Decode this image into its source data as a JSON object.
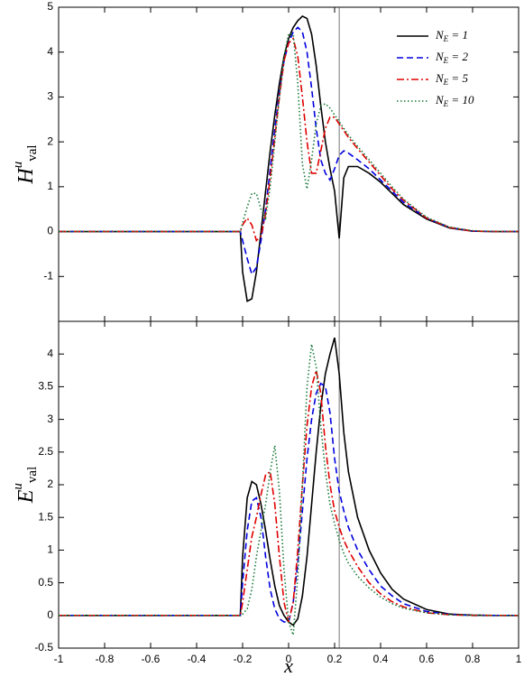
{
  "chart_data": [
    {
      "type": "line",
      "ylabel": "Huval",
      "legend": "upper right",
      "vline": 0.22,
      "x": [
        -1,
        -0.5,
        -0.21,
        -0.2,
        -0.18,
        -0.16,
        -0.14,
        -0.12,
        -0.1,
        -0.08,
        -0.06,
        -0.04,
        -0.02,
        0,
        0.02,
        0.04,
        0.06,
        0.08,
        0.1,
        0.12,
        0.14,
        0.16,
        0.18,
        0.2,
        0.22,
        0.24,
        0.26,
        0.3,
        0.35,
        0.4,
        0.45,
        0.5,
        0.6,
        0.7,
        0.8,
        0.9,
        1
      ],
      "xlim": [
        -1,
        1
      ],
      "xticks": [
        -1,
        -0.8,
        -0.6,
        -0.4,
        -0.2,
        0,
        0.2,
        0.4,
        0.6,
        0.8,
        1
      ],
      "ylim": [
        -2,
        5
      ],
      "yticks": [
        -1,
        0,
        1,
        2,
        3,
        4,
        5
      ],
      "series": [
        {
          "name": "NE = 1",
          "color": "#000000",
          "dash": "none",
          "values": [
            0,
            0,
            0,
            -0.9,
            -1.55,
            -1.5,
            -0.9,
            0,
            0.9,
            1.8,
            2.6,
            3.3,
            3.9,
            4.3,
            4.55,
            4.7,
            4.8,
            4.75,
            4.4,
            3.7,
            2.8,
            2.0,
            1.4,
            0.9,
            -0.15,
            1.2,
            1.45,
            1.45,
            1.3,
            1.1,
            0.85,
            0.6,
            0.28,
            0.08,
            0.01,
            0,
            0
          ]
        },
        {
          "name": "NE = 2",
          "color": "#0000e0",
          "dash": "7 4",
          "values": [
            0,
            0,
            0,
            -0.2,
            -0.6,
            -0.95,
            -0.8,
            -0.2,
            0.5,
            1.4,
            2.3,
            3.1,
            3.8,
            4.2,
            4.45,
            4.55,
            4.45,
            4.0,
            3.2,
            2.3,
            1.6,
            1.3,
            1.15,
            1.4,
            1.7,
            1.8,
            1.75,
            1.6,
            1.4,
            1.15,
            0.9,
            0.65,
            0.3,
            0.09,
            0.01,
            0,
            0
          ]
        },
        {
          "name": "NE = 5",
          "color": "#e00000",
          "dash": "8 3 2 3",
          "values": [
            0,
            0,
            0,
            0.15,
            0.3,
            0.15,
            -0.2,
            -0.1,
            0.4,
            1.2,
            2.1,
            3.0,
            3.8,
            4.2,
            4.3,
            3.9,
            3.0,
            2.0,
            1.3,
            1.3,
            1.8,
            2.3,
            2.55,
            2.55,
            2.4,
            2.25,
            2.1,
            1.85,
            1.55,
            1.25,
            0.95,
            0.7,
            0.3,
            0.09,
            0.01,
            0,
            0
          ]
        },
        {
          "name": "NE = 10",
          "color": "#1a7a3a",
          "dash": "1.5 2.5",
          "values": [
            0,
            0,
            0,
            0.2,
            0.55,
            0.85,
            0.85,
            0.5,
            0.3,
            1.0,
            2.0,
            3.0,
            3.9,
            4.4,
            4.4,
            3.3,
            1.5,
            0.95,
            1.6,
            2.4,
            2.8,
            2.85,
            2.75,
            2.6,
            2.45,
            2.3,
            2.15,
            1.9,
            1.6,
            1.3,
            1.0,
            0.72,
            0.32,
            0.1,
            0.02,
            0,
            0
          ]
        }
      ]
    },
    {
      "type": "line",
      "ylabel": "Euval",
      "xlabel": "x",
      "vline": 0.22,
      "x": [
        -1,
        -0.5,
        -0.21,
        -0.2,
        -0.18,
        -0.16,
        -0.14,
        -0.12,
        -0.1,
        -0.08,
        -0.06,
        -0.04,
        -0.02,
        0,
        0.02,
        0.04,
        0.06,
        0.08,
        0.1,
        0.12,
        0.14,
        0.16,
        0.18,
        0.2,
        0.22,
        0.24,
        0.26,
        0.3,
        0.35,
        0.4,
        0.45,
        0.5,
        0.6,
        0.7,
        0.8,
        0.9,
        1
      ],
      "xlim": [
        -1,
        1
      ],
      "xticks": [
        -1,
        -0.8,
        -0.6,
        -0.4,
        -0.2,
        0,
        0.2,
        0.4,
        0.6,
        0.8,
        1
      ],
      "ylim": [
        -0.5,
        4.5
      ],
      "yticks": [
        -0.5,
        0,
        0.5,
        1,
        1.5,
        2,
        2.5,
        3,
        3.5,
        4
      ],
      "series": [
        {
          "color": "#000000",
          "dash": "none",
          "values": [
            0,
            0,
            0,
            0.9,
            1.8,
            2.05,
            2.0,
            1.7,
            1.3,
            0.85,
            0.45,
            0.15,
            0,
            -0.1,
            -0.15,
            -0.05,
            0.3,
            0.9,
            1.7,
            2.5,
            3.2,
            3.7,
            4.0,
            4.25,
            3.7,
            2.8,
            2.2,
            1.5,
            1.0,
            0.65,
            0.4,
            0.25,
            0.09,
            0.02,
            0.005,
            0,
            0
          ]
        },
        {
          "color": "#0000e0",
          "dash": "7 4",
          "values": [
            0,
            0,
            0,
            0.5,
            1.3,
            1.75,
            1.8,
            1.5,
            0.9,
            0.4,
            0.1,
            -0.05,
            -0.1,
            -0.1,
            0.2,
            0.8,
            1.6,
            2.4,
            3.0,
            3.4,
            3.55,
            3.5,
            3.1,
            2.4,
            1.9,
            1.6,
            1.35,
            1.0,
            0.7,
            0.45,
            0.3,
            0.18,
            0.06,
            0.015,
            0,
            0,
            0
          ]
        },
        {
          "color": "#e00000",
          "dash": "8 3 2 3",
          "values": [
            0,
            0,
            0,
            0.2,
            0.7,
            1.2,
            1.5,
            1.85,
            2.15,
            2.2,
            1.7,
            0.9,
            0.2,
            -0.1,
            0.2,
            1.0,
            2.0,
            2.9,
            3.5,
            3.75,
            3.4,
            2.6,
            2.0,
            1.6,
            1.35,
            1.15,
            1.0,
            0.75,
            0.5,
            0.33,
            0.21,
            0.13,
            0.04,
            0.01,
            0,
            0,
            0
          ]
        },
        {
          "color": "#1a7a3a",
          "dash": "1.5 2.5",
          "values": [
            0,
            0,
            0,
            0.02,
            0.1,
            0.4,
            0.9,
            1.3,
            1.7,
            2.2,
            2.6,
            1.9,
            0.7,
            -0.1,
            -0.3,
            0.6,
            2.0,
            3.5,
            4.15,
            3.8,
            2.9,
            2.2,
            1.7,
            1.4,
            1.15,
            0.95,
            0.8,
            0.6,
            0.42,
            0.28,
            0.18,
            0.11,
            0.04,
            0.01,
            0,
            0,
            0
          ]
        }
      ]
    }
  ]
}
